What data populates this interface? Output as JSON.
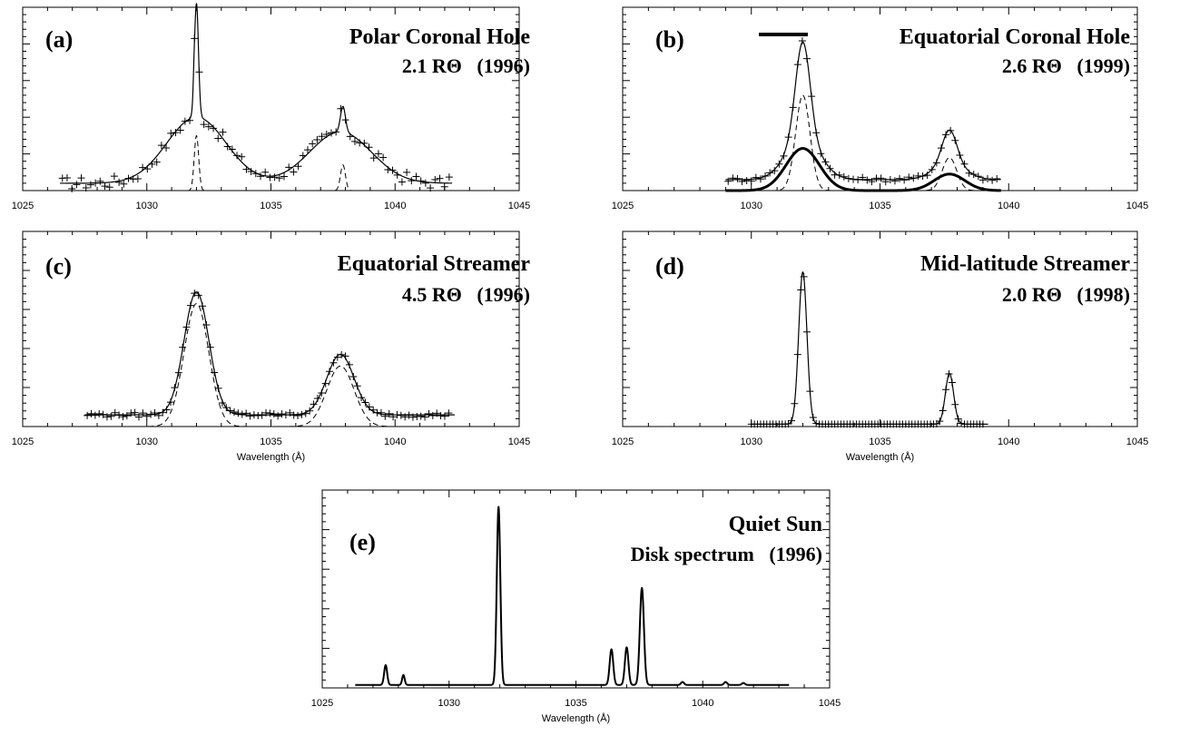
{
  "chart_data": [
    {
      "id": "a",
      "type": "line",
      "panel_label": "(a)",
      "title": "Polar Coronal Hole",
      "subtitle": "2.1 RΘ   (1996)",
      "legend_label": "",
      "xlabel": "",
      "xlim": [
        1025,
        1045
      ],
      "ylim": [
        0,
        1
      ],
      "xticks": [
        1025,
        1030,
        1035,
        1040,
        1045
      ],
      "x_range": [
        1026.5,
        1042.3
      ],
      "components": [
        {
          "name": "",
          "style": "solid",
          "gaussians": [
            [
              0.05,
              1031.9,
              0.03
            ],
            [
              0.36,
              1032.0,
              1.2
            ],
            [
              0.62,
              1032.0,
              0.08
            ],
            [
              0.28,
              1037.8,
              1.25
            ],
            [
              0.14,
              1037.9,
              0.1
            ]
          ],
          "baseline": 0.04
        },
        {
          "name": "",
          "style": "dashed",
          "gaussians": [
            [
              0.3,
              1032.0,
              0.09
            ],
            [
              0.14,
              1037.9,
              0.1
            ]
          ],
          "baseline": 0.0
        }
      ],
      "markers": {
        "style": "plus",
        "step": 0.19,
        "from": 1026.6,
        "to": 1042.2,
        "follow": 0,
        "scatter": 0.035
      }
    },
    {
      "id": "b",
      "type": "line",
      "panel_label": "(b)",
      "title": "Equatorial Coronal Hole",
      "subtitle": "2.6 RΘ   (1999)",
      "legend_label": "",
      "xlabel": "",
      "xlim": [
        1025,
        1045
      ],
      "ylim": [
        0,
        1
      ],
      "xticks": [
        1025,
        1030,
        1035,
        1040,
        1045
      ],
      "x_range": [
        1029.0,
        1039.7
      ],
      "components": [
        {
          "name": "",
          "style": "solid",
          "gaussians": [
            [
              0.52,
              1032.0,
              0.28
            ],
            [
              0.23,
              1032.0,
              0.65
            ],
            [
              0.18,
              1037.7,
              0.28
            ],
            [
              0.09,
              1037.7,
              0.6
            ]
          ],
          "baseline": 0.06
        },
        {
          "name": "",
          "style": "thick",
          "gaussians": [
            [
              0.23,
              1032.0,
              0.65
            ],
            [
              0.09,
              1037.7,
              0.6
            ]
          ],
          "baseline": 0.0
        },
        {
          "name": "",
          "style": "dashed",
          "gaussians": [
            [
              0.52,
              1032.0,
              0.28
            ],
            [
              0.18,
              1037.7,
              0.28
            ]
          ],
          "baseline": 0.0
        }
      ],
      "markers": {
        "style": "plus",
        "step": 0.18,
        "from": 1029.1,
        "to": 1039.6,
        "follow": 0,
        "scatter": 0.012
      }
    },
    {
      "id": "c",
      "type": "line",
      "panel_label": "(c)",
      "title": "Equatorial Streamer",
      "subtitle": "4.5 RΘ   (1996)",
      "legend_label": "",
      "xlabel": "Wavelength (Å)",
      "xlim": [
        1025,
        1045
      ],
      "ylim": [
        0,
        1
      ],
      "xticks": [
        1025,
        1030,
        1035,
        1040,
        1045
      ],
      "x_range": [
        1027.5,
        1042.4
      ],
      "components": [
        {
          "name": "",
          "style": "solid",
          "gaussians": [
            [
              0.63,
              1032.0,
              0.5
            ],
            [
              0.31,
              1037.8,
              0.55
            ]
          ],
          "baseline": 0.06
        },
        {
          "name": "",
          "style": "dashed",
          "gaussians": [
            [
              0.63,
              1032.0,
              0.5
            ],
            [
              0.31,
              1037.8,
              0.55
            ]
          ],
          "baseline": 0.0
        }
      ],
      "markers": {
        "style": "plus",
        "step": 0.16,
        "from": 1027.6,
        "to": 1042.3,
        "follow": 0,
        "scatter": 0.012
      }
    },
    {
      "id": "d",
      "type": "line",
      "panel_label": "(d)",
      "title": "Mid-latitude Streamer",
      "subtitle": "2.0 RΘ   (1998)",
      "legend_label": "",
      "xlabel": "Wavelength (Å)",
      "xlim": [
        1025,
        1045
      ],
      "ylim": [
        0,
        1
      ],
      "xticks": [
        1025,
        1030,
        1035,
        1040,
        1045
      ],
      "x_range": [
        1030.0,
        1039.2
      ],
      "components": [
        {
          "name": "",
          "style": "solid",
          "gaussians": [
            [
              0.78,
              1032.0,
              0.16
            ],
            [
              0.26,
              1037.7,
              0.16
            ]
          ],
          "baseline": 0.012
        }
      ],
      "markers": {
        "style": "plus",
        "step": 0.12,
        "from": 1030.0,
        "to": 1039.0,
        "follow": 0,
        "scatter": 0.0
      }
    },
    {
      "id": "e",
      "type": "line",
      "panel_label": "(e)",
      "title": "Quiet Sun",
      "subtitle": "Disk spectrum   (1996)",
      "legend_label": "",
      "xlabel": "Wavelength (Å)",
      "xlim": [
        1025,
        1045
      ],
      "ylim": [
        0,
        1
      ],
      "xticks": [
        1025,
        1030,
        1035,
        1040,
        1045
      ],
      "x_range": [
        1026.3,
        1043.4
      ],
      "components": [
        {
          "name": "",
          "style": "solid",
          "gaussians": [
            [
              0.1,
              1027.5,
              0.06
            ],
            [
              0.05,
              1028.2,
              0.05
            ],
            [
              0.9,
              1031.95,
              0.07
            ],
            [
              0.18,
              1036.4,
              0.07
            ],
            [
              0.19,
              1037.0,
              0.07
            ],
            [
              0.49,
              1037.6,
              0.08
            ],
            [
              0.015,
              1039.2,
              0.06
            ],
            [
              0.015,
              1040.9,
              0.06
            ],
            [
              0.01,
              1041.6,
              0.06
            ]
          ],
          "baseline": 0.015
        }
      ],
      "markers": null
    }
  ]
}
